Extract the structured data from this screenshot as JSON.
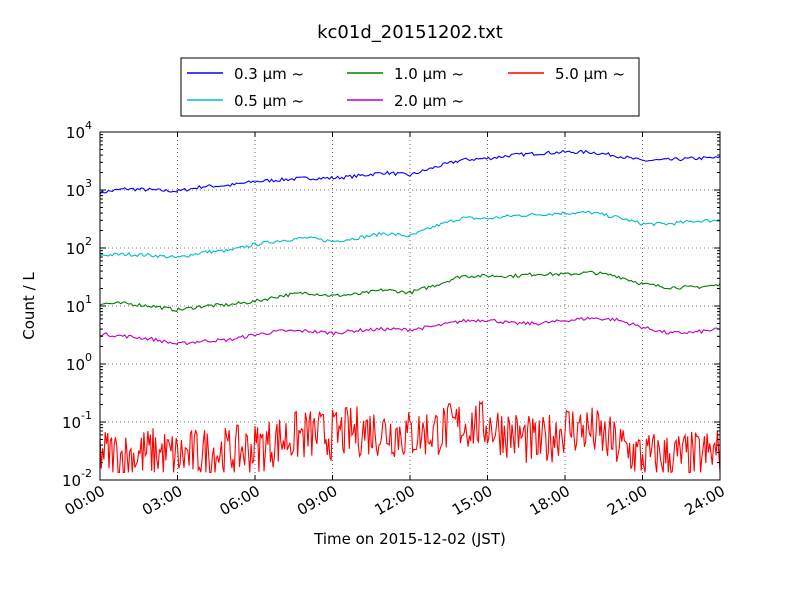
{
  "chart_data": {
    "type": "line",
    "title": "kc01d_20151202.txt",
    "xlabel": "Time on 2015-12-02 (JST)",
    "ylabel": "Count / L",
    "x_unit": "hour",
    "xlim": [
      0,
      24
    ],
    "ylim": [
      0.01,
      10000
    ],
    "yscale": "log",
    "grid": true,
    "legend_position": "top-center",
    "x_ticks": [
      "00:00",
      "03:00",
      "06:00",
      "09:00",
      "12:00",
      "15:00",
      "18:00",
      "21:00",
      "24:00"
    ],
    "y_ticks": [
      {
        "base": "10",
        "exp": "-2"
      },
      {
        "base": "10",
        "exp": "-1"
      },
      {
        "base": "10",
        "exp": "0"
      },
      {
        "base": "10",
        "exp": "1"
      },
      {
        "base": "10",
        "exp": "2"
      },
      {
        "base": "10",
        "exp": "3"
      },
      {
        "base": "10",
        "exp": "4"
      }
    ],
    "x": [
      0,
      1,
      2,
      3,
      4,
      5,
      6,
      7,
      8,
      9,
      10,
      11,
      12,
      13,
      14,
      15,
      16,
      17,
      18,
      19,
      20,
      21,
      22,
      23,
      24
    ],
    "series": [
      {
        "name": "0.3 μm ~",
        "color": "#0000ff",
        "values": [
          900,
          1050,
          1000,
          950,
          1150,
          1200,
          1400,
          1500,
          1600,
          1600,
          1750,
          2000,
          1800,
          2500,
          3300,
          3500,
          4000,
          4300,
          4500,
          4500,
          3900,
          3200,
          3300,
          3500,
          3600
        ]
      },
      {
        "name": "0.5 μm ~",
        "color": "#00bfbf",
        "values": [
          75,
          78,
          75,
          68,
          85,
          90,
          115,
          135,
          150,
          130,
          150,
          180,
          160,
          240,
          330,
          320,
          360,
          380,
          400,
          410,
          340,
          260,
          260,
          290,
          300
        ]
      },
      {
        "name": "1.0 μm ~",
        "color": "#008000",
        "values": [
          11,
          11,
          10,
          8.5,
          10,
          10.5,
          12,
          15,
          17,
          15,
          16,
          19,
          17,
          23,
          33,
          33,
          33,
          36,
          35,
          38,
          33,
          24,
          21,
          21,
          23
        ]
      },
      {
        "name": "2.0 μm ~",
        "color": "#bf00bf",
        "values": [
          3.3,
          3.0,
          2.7,
          2.2,
          2.5,
          2.6,
          3.2,
          3.7,
          3.7,
          3.4,
          3.8,
          4.0,
          3.9,
          4.5,
          5.5,
          5.8,
          5.0,
          5.0,
          5.6,
          6.2,
          5.8,
          4.3,
          3.4,
          3.5,
          4.0
        ]
      },
      {
        "name": "5.0 μm ~",
        "color": "#ff0000",
        "values": [
          0.03,
          0.025,
          0.03,
          0.025,
          0.03,
          0.03,
          0.035,
          0.05,
          0.06,
          0.06,
          0.07,
          0.07,
          0.06,
          0.07,
          0.09,
          0.09,
          0.06,
          0.04,
          0.08,
          0.07,
          0.04,
          0.025,
          0.025,
          0.025,
          0.03
        ]
      }
    ]
  }
}
